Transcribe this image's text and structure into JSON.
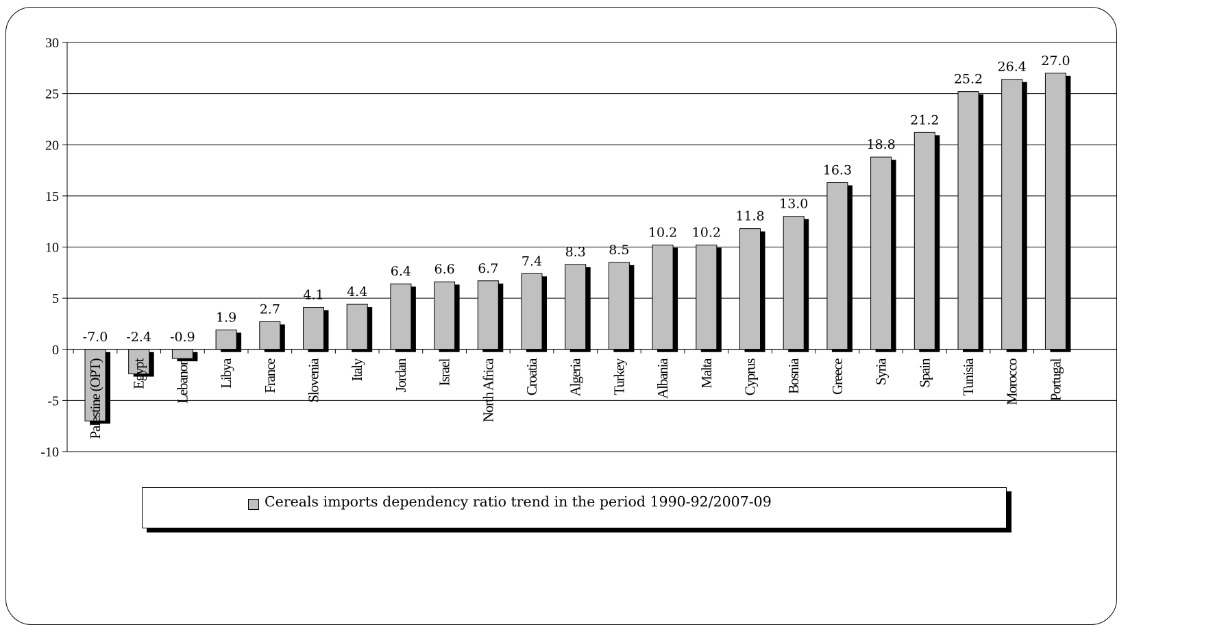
{
  "chart_data": {
    "type": "bar",
    "title": "",
    "xlabel": "",
    "ylabel": "",
    "ylim": [
      -10,
      30
    ],
    "yticks": [
      -10,
      -5,
      0,
      5,
      10,
      15,
      20,
      25,
      30
    ],
    "grid": true,
    "legend_position": "bottom",
    "categories": [
      "Palestine (OPT)",
      "Egypt",
      "Lebanon",
      "Libya",
      "France",
      "Slovenia",
      "Italy",
      "Jordan",
      "Israel",
      "North Africa",
      "Croatia",
      "Algeria",
      "Turkey",
      "Albania",
      "Malta",
      "Cyprus",
      "Bosnia",
      "Greece",
      "Syria",
      "Spain",
      "Tunisia",
      "Morocco",
      "Portugal"
    ],
    "series": [
      {
        "name": "Cereals imports dependency ratio trend in the period 1990-92/2007-09",
        "values": [
          -7.0,
          -2.4,
          -0.9,
          1.9,
          2.7,
          4.1,
          4.4,
          6.4,
          6.6,
          6.7,
          7.4,
          8.3,
          8.5,
          10.2,
          10.2,
          11.8,
          13.0,
          16.3,
          18.8,
          21.2,
          25.2,
          26.4,
          27.0
        ],
        "labels": [
          "-7.0",
          "-2.4",
          "-0.9",
          "1.9",
          "2.7",
          "4.1",
          "4.4",
          "6.4",
          "6.6",
          "6.7",
          "7.4",
          "8.3",
          "8.5",
          "10.2",
          "10.2",
          "11.8",
          "13.0",
          "16.3",
          "18.8",
          "21.2",
          "25.2",
          "26.4",
          "27.0"
        ]
      }
    ],
    "colors": {
      "bar_fill": "#c0c0c0",
      "bar_shadow": "#000000",
      "gridline": "#000000"
    }
  },
  "legend": {
    "label": "Cereals imports dependency ratio trend in the period 1990-92/2007-09"
  }
}
